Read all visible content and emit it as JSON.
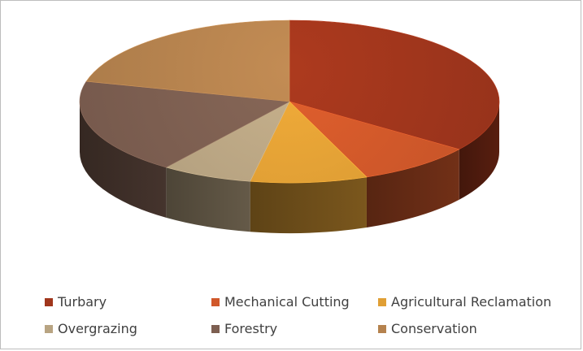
{
  "chart_data": {
    "type": "pie",
    "title": "",
    "style": "3d",
    "legend_position": "bottom",
    "categories": [
      "Turbary",
      "Mechanical Cutting",
      "Agricultural Reclamation",
      "Overgrazing",
      "Forestry",
      "Conservation"
    ],
    "values": [
      35,
      9,
      9,
      7,
      19,
      21
    ],
    "colors": [
      "#a0361c",
      "#d0582a",
      "#e09f35",
      "#b8a482",
      "#7d5f51",
      "#b5824e"
    ]
  }
}
